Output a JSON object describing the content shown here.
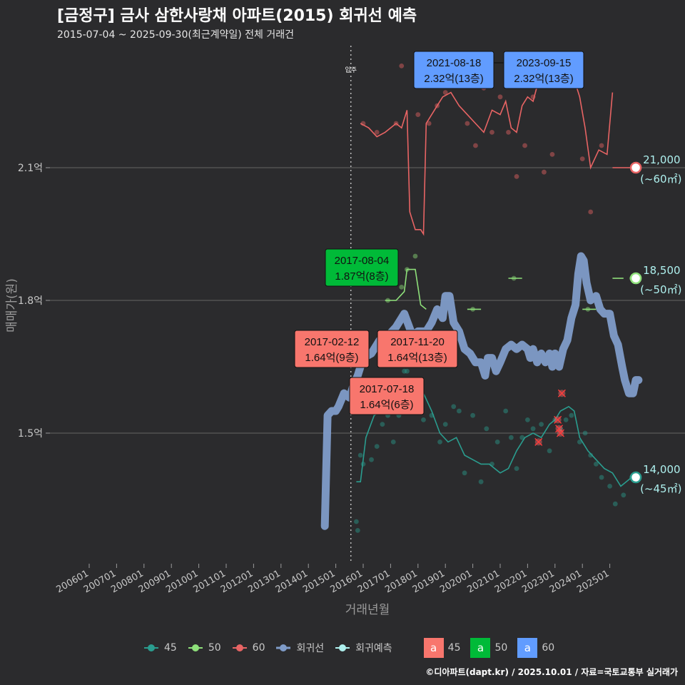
{
  "title": "[금정구] 금사 삼한사랑채 아파트(2015) 회귀선 예측",
  "subtitle": "2015-07-04 ~ 2025-09-30(최근계약일) 전체 거래건",
  "credit": "©디아파트(dapt.kr) / 2025.10.01 / 자료=국토교통부 실거래가",
  "colors": {
    "background": "#2b2b2d",
    "s45": "#2a9d8f",
    "s50": "#8ee07a",
    "s60": "#e86464",
    "regression": "#7f9cc9",
    "forecast": "#aef0ee",
    "box45": "#f8766d",
    "box50": "#00ba38",
    "box60": "#619cff"
  },
  "chart_data": {
    "type": "line",
    "xlabel": "거래년월",
    "ylabel": "매매가(원)",
    "x_ticks": [
      "200601",
      "200701",
      "200801",
      "200901",
      "201001",
      "201101",
      "201201",
      "201301",
      "201401",
      "201501",
      "201601",
      "201701",
      "201801",
      "201901",
      "202001",
      "202101",
      "202201",
      "202301",
      "202401",
      "202501"
    ],
    "y_ticks": [
      {
        "label": "1.5억",
        "value": 15000
      },
      {
        "label": "1.8억",
        "value": 18000
      },
      {
        "label": "2.1억",
        "value": 21000
      }
    ],
    "ylim": [
      12000,
      24200
    ],
    "vline": {
      "label": "입주",
      "x": 2015.55
    },
    "series": [
      {
        "name": "45",
        "color": "#2a9d8f",
        "line": [
          [
            2015.75,
            13900
          ],
          [
            2015.9,
            13900
          ],
          [
            2016.1,
            14900
          ],
          [
            2016.4,
            15400
          ],
          [
            2016.7,
            15500
          ],
          [
            2016.9,
            15700
          ],
          [
            2017.2,
            16000
          ],
          [
            2017.6,
            16000
          ],
          [
            2017.9,
            15900
          ],
          [
            2018.2,
            15900
          ],
          [
            2018.5,
            15500
          ],
          [
            2018.8,
            15000
          ],
          [
            2019.1,
            14800
          ],
          [
            2019.4,
            14900
          ],
          [
            2019.7,
            14500
          ],
          [
            2020.0,
            14400
          ],
          [
            2020.3,
            14300
          ],
          [
            2020.6,
            14300
          ],
          [
            2020.8,
            14200
          ],
          [
            2021.0,
            14100
          ],
          [
            2021.3,
            14200
          ],
          [
            2021.6,
            14600
          ],
          [
            2021.9,
            14900
          ],
          [
            2022.2,
            15000
          ],
          [
            2022.5,
            14900
          ],
          [
            2022.8,
            15200
          ],
          [
            2023.0,
            15300
          ],
          [
            2023.2,
            15500
          ],
          [
            2023.5,
            15600
          ],
          [
            2023.7,
            15500
          ],
          [
            2023.9,
            14900
          ],
          [
            2024.2,
            14600
          ],
          [
            2024.5,
            14400
          ],
          [
            2024.8,
            14200
          ],
          [
            2025.1,
            14100
          ],
          [
            2025.4,
            13800
          ],
          [
            2025.6,
            13900
          ],
          [
            2025.8,
            14000
          ]
        ],
        "points": [
          [
            2015.75,
            13000
          ],
          [
            2015.8,
            12800
          ],
          [
            2015.9,
            14500
          ],
          [
            2016.0,
            14300
          ],
          [
            2016.3,
            14400
          ],
          [
            2016.5,
            14700
          ],
          [
            2016.7,
            15200
          ],
          [
            2016.9,
            15400
          ],
          [
            2017.1,
            14800
          ],
          [
            2017.2,
            15600
          ],
          [
            2017.3,
            15400
          ],
          [
            2017.4,
            15800
          ],
          [
            2017.5,
            16400
          ],
          [
            2017.6,
            16400
          ],
          [
            2018.0,
            15900
          ],
          [
            2018.2,
            15300
          ],
          [
            2018.5,
            15400
          ],
          [
            2018.8,
            14800
          ],
          [
            2019.0,
            15200
          ],
          [
            2019.3,
            15600
          ],
          [
            2019.5,
            15500
          ],
          [
            2019.7,
            14100
          ],
          [
            2020.0,
            15400
          ],
          [
            2020.3,
            13900
          ],
          [
            2020.5,
            15100
          ],
          [
            2020.7,
            14300
          ],
          [
            2020.9,
            14800
          ],
          [
            2021.2,
            15500
          ],
          [
            2021.4,
            14900
          ],
          [
            2021.6,
            14200
          ],
          [
            2021.8,
            14900
          ],
          [
            2022.0,
            15300
          ],
          [
            2022.2,
            15100
          ],
          [
            2022.5,
            15200
          ],
          [
            2022.8,
            14600
          ],
          [
            2023.0,
            15300
          ],
          [
            2023.2,
            15100
          ],
          [
            2023.4,
            15300
          ],
          [
            2023.6,
            15400
          ],
          [
            2023.9,
            14800
          ],
          [
            2024.1,
            15000
          ],
          [
            2024.3,
            14500
          ],
          [
            2024.5,
            14300
          ],
          [
            2024.7,
            14000
          ],
          [
            2025.0,
            13800
          ],
          [
            2025.2,
            13400
          ],
          [
            2025.5,
            13600
          ],
          [
            2025.8,
            14000
          ]
        ],
        "cancelled": [
          [
            2022.4,
            14800
          ],
          [
            2023.1,
            15300
          ],
          [
            2023.15,
            15100
          ],
          [
            2023.2,
            15000
          ],
          [
            2023.25,
            15900
          ]
        ]
      },
      {
        "name": "50",
        "color": "#8ee07a",
        "line": [
          [
            2016.8,
            18000
          ],
          [
            2017.2,
            18000
          ],
          [
            2017.5,
            18200
          ],
          [
            2017.6,
            18700
          ],
          [
            2017.9,
            18700
          ],
          [
            2018.1,
            17900
          ],
          [
            2018.3,
            17800
          ]
        ],
        "segments": [
          [
            [
              2019.8,
              17800
            ],
            [
              2020.3,
              17800
            ]
          ],
          [
            [
              2021.3,
              18500
            ],
            [
              2021.8,
              18500
            ]
          ],
          [
            [
              2024.0,
              17800
            ],
            [
              2024.5,
              17800
            ]
          ],
          [
            [
              2025.1,
              18500
            ],
            [
              2025.5,
              18500
            ]
          ]
        ],
        "points": [
          [
            2016.9,
            18000
          ],
          [
            2017.4,
            18300
          ],
          [
            2017.6,
            18700
          ],
          [
            2017.9,
            19000
          ],
          [
            2020.0,
            17800
          ],
          [
            2021.5,
            18500
          ],
          [
            2024.2,
            17800
          ],
          [
            2025.8,
            18500
          ]
        ]
      },
      {
        "name": "60",
        "color": "#e86464",
        "line": [
          [
            2015.9,
            22000
          ],
          [
            2016.2,
            21900
          ],
          [
            2016.5,
            21700
          ],
          [
            2016.8,
            21800
          ],
          [
            2017.0,
            21900
          ],
          [
            2017.2,
            22000
          ],
          [
            2017.4,
            21900
          ],
          [
            2017.6,
            22300
          ],
          [
            2017.7,
            20000
          ],
          [
            2017.9,
            19600
          ],
          [
            2018.1,
            19600
          ],
          [
            2018.2,
            19500
          ],
          [
            2018.3,
            22000
          ],
          [
            2018.6,
            22300
          ],
          [
            2018.9,
            22600
          ],
          [
            2019.2,
            22700
          ],
          [
            2019.5,
            22400
          ],
          [
            2019.8,
            22200
          ],
          [
            2020.1,
            22000
          ],
          [
            2020.4,
            21800
          ],
          [
            2020.7,
            22300
          ],
          [
            2021.0,
            22200
          ],
          [
            2021.2,
            22500
          ],
          [
            2021.4,
            21900
          ],
          [
            2021.6,
            21800
          ],
          [
            2021.8,
            22400
          ],
          [
            2022.0,
            22600
          ],
          [
            2022.2,
            22500
          ],
          [
            2022.5,
            23200
          ],
          [
            2022.8,
            23400
          ],
          [
            2023.0,
            23200
          ],
          [
            2023.3,
            23000
          ],
          [
            2023.6,
            23200
          ],
          [
            2023.9,
            22600
          ],
          [
            2024.1,
            21900
          ],
          [
            2024.3,
            21000
          ],
          [
            2024.6,
            21400
          ],
          [
            2024.9,
            21300
          ],
          [
            2025.1,
            22700
          ]
        ],
        "points": [
          [
            2016.0,
            22000
          ],
          [
            2016.5,
            21800
          ],
          [
            2017.2,
            22000
          ],
          [
            2017.4,
            23300
          ],
          [
            2018.0,
            22200
          ],
          [
            2018.4,
            22000
          ],
          [
            2018.7,
            22400
          ],
          [
            2019.0,
            22700
          ],
          [
            2019.4,
            23000
          ],
          [
            2019.8,
            22000
          ],
          [
            2020.1,
            21500
          ],
          [
            2020.4,
            22800
          ],
          [
            2020.7,
            21800
          ],
          [
            2021.0,
            22600
          ],
          [
            2021.3,
            21800
          ],
          [
            2021.6,
            20800
          ],
          [
            2021.9,
            21500
          ],
          [
            2022.2,
            22600
          ],
          [
            2022.6,
            20900
          ],
          [
            2022.9,
            21300
          ],
          [
            2023.3,
            23300
          ],
          [
            2023.7,
            23000
          ],
          [
            2024.0,
            21200
          ],
          [
            2024.3,
            20000
          ],
          [
            2024.7,
            21500
          ]
        ]
      },
      {
        "name": "회귀선",
        "color": "#7f9cc9",
        "line": [
          [
            2014.6,
            12900
          ],
          [
            2014.7,
            15400
          ],
          [
            2014.85,
            15500
          ],
          [
            2015.0,
            15500
          ],
          [
            2015.1,
            15600
          ],
          [
            2015.3,
            15900
          ],
          [
            2015.5,
            15800
          ],
          [
            2015.65,
            16100
          ],
          [
            2015.8,
            16300
          ],
          [
            2016.0,
            16700
          ],
          [
            2016.3,
            16800
          ],
          [
            2016.6,
            17100
          ],
          [
            2016.9,
            17200
          ],
          [
            2017.2,
            17400
          ],
          [
            2017.5,
            17700
          ],
          [
            2017.8,
            17200
          ],
          [
            2018.0,
            17300
          ],
          [
            2018.3,
            17300
          ],
          [
            2018.5,
            17500
          ],
          [
            2018.7,
            17800
          ],
          [
            2018.9,
            17600
          ],
          [
            2019.0,
            18100
          ],
          [
            2019.15,
            18100
          ],
          [
            2019.3,
            17500
          ],
          [
            2019.5,
            17300
          ],
          [
            2019.7,
            16900
          ],
          [
            2019.9,
            16800
          ],
          [
            2020.1,
            16600
          ],
          [
            2020.3,
            16600
          ],
          [
            2020.45,
            16300
          ],
          [
            2020.55,
            16700
          ],
          [
            2020.7,
            16700
          ],
          [
            2020.85,
            16400
          ],
          [
            2021.0,
            16600
          ],
          [
            2021.2,
            16900
          ],
          [
            2021.4,
            17000
          ],
          [
            2021.6,
            16900
          ],
          [
            2021.8,
            17000
          ],
          [
            2022.0,
            16900
          ],
          [
            2022.1,
            16700
          ],
          [
            2022.2,
            16900
          ],
          [
            2022.35,
            16600
          ],
          [
            2022.5,
            16800
          ],
          [
            2022.65,
            16600
          ],
          [
            2022.8,
            16800
          ],
          [
            2022.9,
            16500
          ],
          [
            2023.0,
            16800
          ],
          [
            2023.15,
            16500
          ],
          [
            2023.3,
            16900
          ],
          [
            2023.45,
            17100
          ],
          [
            2023.6,
            17600
          ],
          [
            2023.75,
            17900
          ],
          [
            2023.85,
            18600
          ],
          [
            2023.95,
            19000
          ],
          [
            2024.05,
            18900
          ],
          [
            2024.15,
            18400
          ],
          [
            2024.3,
            18000
          ],
          [
            2024.5,
            18100
          ],
          [
            2024.65,
            17800
          ],
          [
            2024.8,
            17700
          ],
          [
            2025.0,
            17700
          ],
          [
            2025.15,
            17200
          ],
          [
            2025.3,
            17000
          ],
          [
            2025.45,
            16500
          ],
          [
            2025.55,
            16200
          ],
          [
            2025.7,
            15900
          ],
          [
            2025.85,
            15900
          ],
          [
            2025.95,
            16200
          ],
          [
            2026.05,
            16200
          ]
        ]
      },
      {
        "name": "회귀예측",
        "color": "#aef0ee"
      }
    ],
    "forecast_points": [
      {
        "size": "45",
        "x": 2025.95,
        "y": 14000,
        "value": "14,000",
        "area": "(~45㎡)"
      },
      {
        "size": "50",
        "x": 2025.95,
        "y": 18500,
        "value": "18,500",
        "area": "(~50㎡)"
      },
      {
        "size": "60",
        "x": 2025.95,
        "y": 21000,
        "value": "21,000",
        "area": "(~60㎡)"
      }
    ],
    "annotations": [
      {
        "size": "60",
        "date": "2021-08-18",
        "price": "2.32억(13층)",
        "x": 2021.63,
        "y": 23200
      },
      {
        "size": "60",
        "date": "2023-09-15",
        "price": "2.32억(13층)",
        "x": 2023.7,
        "y": 23200
      },
      {
        "size": "50",
        "date": "2017-08-04",
        "price": "1.87억(8층)",
        "x": 2017.6,
        "y": 18700
      },
      {
        "size": "45",
        "date": "2017-02-12",
        "price": "1.64억(9층)",
        "x": 2017.12,
        "y": 16400
      },
      {
        "size": "45",
        "date": "2017-11-20",
        "price": "1.64억(13층)",
        "x": 2017.88,
        "y": 16400
      },
      {
        "size": "45",
        "date": "2017-07-18",
        "price": "1.64억(6층)",
        "x": 2017.55,
        "y": 16400
      }
    ]
  },
  "legend": {
    "lines": [
      {
        "label": "45",
        "color": "#2a9d8f"
      },
      {
        "label": "50",
        "color": "#8ee07a"
      },
      {
        "label": "60",
        "color": "#e86464"
      },
      {
        "label": "회귀선",
        "color": "#7f9cc9"
      },
      {
        "label": "회귀예측",
        "color": "#aef0ee"
      }
    ],
    "boxes": [
      {
        "glyph": "a",
        "label": "45",
        "color": "#f8766d"
      },
      {
        "glyph": "a",
        "label": "50",
        "color": "#00ba38"
      },
      {
        "glyph": "a",
        "label": "60",
        "color": "#619cff"
      }
    ]
  }
}
